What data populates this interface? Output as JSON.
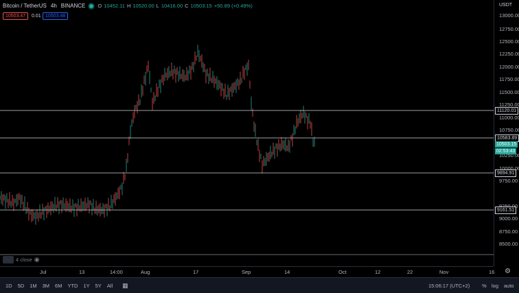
{
  "header": {
    "symbol": "Bitcoin / TetherUS",
    "interval": "4h",
    "exchange": "BINANCE",
    "ohlc": {
      "o_label": "O",
      "o": "10452.11",
      "h_label": "H",
      "h": "10520.00",
      "l_label": "L",
      "l": "10416.00",
      "c_label": "C",
      "c": "10503.15",
      "change": "+50.89 (+0.49%)"
    },
    "sell_price": "10503.47",
    "spread": "0.01",
    "buy_price": "10503.48"
  },
  "price_axis": {
    "unit": "USDT",
    "ticks": [
      "13000.00",
      "12750.00",
      "12500.00",
      "12250.00",
      "12000.00",
      "11750.00",
      "11500.00",
      "11250.00",
      "11000.00",
      "10750.00",
      "10250.00",
      "10000.00",
      "9750.00",
      "9250.00",
      "9000.00",
      "8750.00",
      "8500.00"
    ],
    "current_price": "10503.15",
    "countdown": "02:53:43"
  },
  "levels": [
    "11120.01",
    "10583.89",
    "9894.91",
    "9161.51"
  ],
  "time_axis": [
    "Jul",
    "13",
    "14:00",
    "Aug",
    "17",
    "Sep",
    "14",
    "Oct",
    "12",
    "22",
    "Nov",
    "16"
  ],
  "legend": {
    "label": "4 close"
  },
  "bottom_bar": {
    "ranges": [
      "1D",
      "5D",
      "1M",
      "3M",
      "6M",
      "YTD",
      "1Y",
      "5Y",
      "All"
    ],
    "clock": "15:06:17 (UTC+2)",
    "pct": "%",
    "log": "log",
    "auto": "auto"
  },
  "colors": {
    "up": "#26a69a",
    "down": "#ef5350",
    "line": "#d1d4dc",
    "bg": "#000000"
  }
}
